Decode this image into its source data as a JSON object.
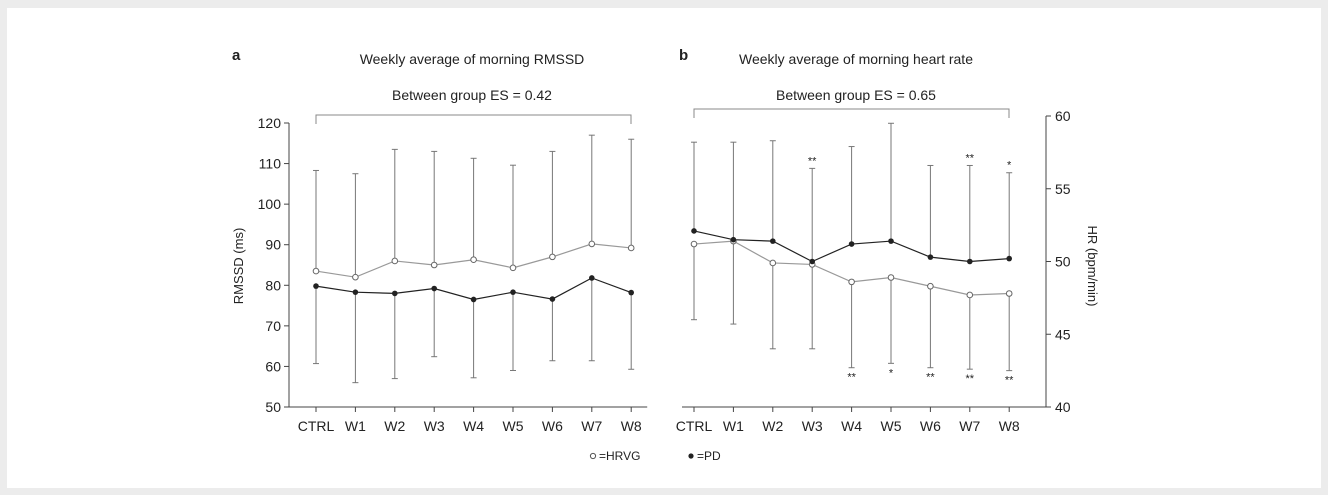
{
  "figure": {
    "legend": {
      "open_marker_label": "=HRVG",
      "filled_marker_label": "=PD"
    }
  },
  "chart_data": [
    {
      "panel_letter": "a",
      "type": "line",
      "title": "Weekly average of morning RMSSD",
      "effect_size_label": "Between group ES = 0.42",
      "ylabel": "RMSSD (ms)",
      "y_axis_side": "left",
      "ylim": [
        50,
        120
      ],
      "yticks": [
        50,
        60,
        70,
        80,
        90,
        100,
        110,
        120
      ],
      "categories": [
        "CTRL",
        "W1",
        "W2",
        "W3",
        "W4",
        "W5",
        "W6",
        "W7",
        "W8"
      ],
      "grid": false,
      "legend_position": "bottom",
      "series": [
        {
          "name": "HRVG",
          "marker": "open",
          "color": "#999999",
          "values": [
            83.5,
            82,
            86,
            85,
            86.3,
            84.3,
            87,
            90.2,
            89.2
          ],
          "error_up": [
            108.3,
            107.5,
            113.5,
            113,
            111.3,
            109.6,
            113,
            117,
            116
          ]
        },
        {
          "name": "PD",
          "marker": "filled",
          "color": "#222222",
          "values": [
            79.8,
            78.3,
            78,
            79.2,
            76.5,
            78.3,
            76.6,
            81.8,
            78.2
          ],
          "error_down": [
            60.7,
            56,
            57,
            62.4,
            57.2,
            59,
            61.4,
            61.4,
            59.3
          ]
        }
      ],
      "annotations": []
    },
    {
      "panel_letter": "b",
      "type": "line",
      "title": "Weekly average of morning heart rate",
      "effect_size_label": "Between group ES = 0.65",
      "ylabel": "HR (bpm/min)",
      "y_axis_side": "right",
      "ylim": [
        40,
        60
      ],
      "yticks": [
        40,
        45,
        50,
        55,
        60
      ],
      "categories": [
        "CTRL",
        "W1",
        "W2",
        "W3",
        "W4",
        "W5",
        "W6",
        "W7",
        "W8"
      ],
      "grid": false,
      "legend_position": "bottom",
      "series": [
        {
          "name": "HRVG",
          "marker": "open",
          "color": "#999999",
          "values": [
            51.2,
            51.4,
            49.9,
            49.8,
            48.6,
            48.9,
            48.3,
            47.7,
            47.8
          ],
          "error_down": [
            46,
            45.7,
            44,
            44,
            42.7,
            43,
            42.7,
            42.6,
            42.5
          ]
        },
        {
          "name": "PD",
          "marker": "filled",
          "color": "#222222",
          "values": [
            52.1,
            51.5,
            51.4,
            50,
            51.2,
            51.4,
            50.3,
            50,
            50.2
          ],
          "error_up": [
            58.2,
            58.2,
            58.3,
            56.4,
            57.9,
            59.5,
            56.6,
            56.6,
            56.1
          ]
        }
      ],
      "annotations": [
        {
          "category": "W3",
          "position": "above",
          "text": "**"
        },
        {
          "category": "W7",
          "position": "above",
          "text": "**"
        },
        {
          "category": "W8",
          "position": "above",
          "text": "*"
        },
        {
          "category": "W4",
          "position": "below",
          "text": "**"
        },
        {
          "category": "W5",
          "position": "below",
          "text": "*"
        },
        {
          "category": "W6",
          "position": "below",
          "text": "**"
        },
        {
          "category": "W7",
          "position": "below",
          "text": "**"
        },
        {
          "category": "W8",
          "position": "below",
          "text": "**"
        }
      ]
    }
  ]
}
